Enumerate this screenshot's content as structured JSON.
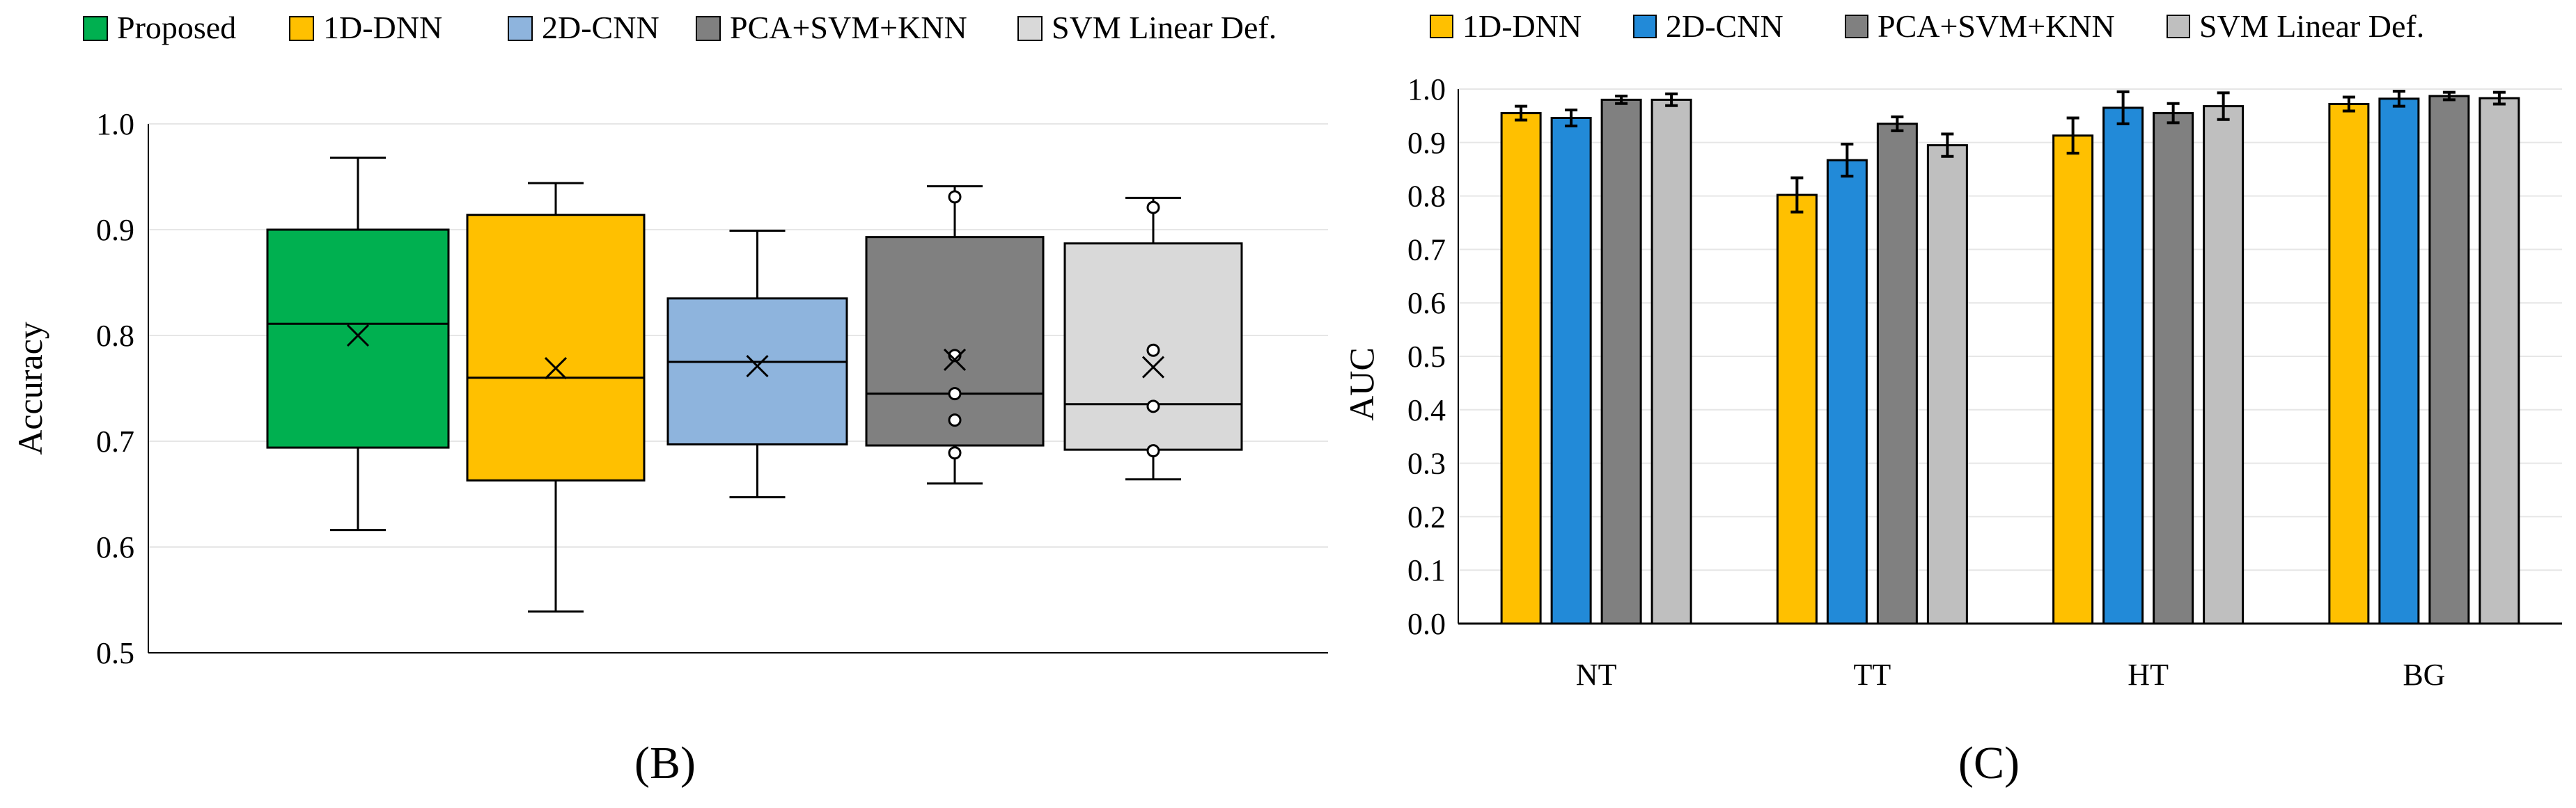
{
  "chart_data": [
    {
      "type": "box",
      "panel_label": "(B)",
      "ylabel": "Accuracy",
      "ylim": [
        0.5,
        1.0
      ],
      "yticks": [
        "0.5",
        "0.6",
        "0.7",
        "0.8",
        "0.9",
        "1.0"
      ],
      "legend_position": "top",
      "series": [
        {
          "name": "Proposed",
          "color": "#00b050",
          "min": 0.616,
          "q1": 0.694,
          "median": 0.811,
          "q3": 0.9,
          "max": 0.968,
          "mean": 0.8,
          "outliers": []
        },
        {
          "name": "1D-DNN",
          "color": "#ffc000",
          "min": 0.539,
          "q1": 0.663,
          "median": 0.76,
          "q3": 0.914,
          "max": 0.944,
          "mean": 0.769,
          "outliers": []
        },
        {
          "name": "2D-CNN",
          "color": "#8eb4dd",
          "min": 0.647,
          "q1": 0.697,
          "median": 0.775,
          "q3": 0.835,
          "max": 0.899,
          "mean": 0.771,
          "outliers": []
        },
        {
          "name": "PCA+SVM+KNN",
          "color": "#808080",
          "min": 0.66,
          "q1": 0.696,
          "median": 0.745,
          "q3": 0.893,
          "max": 0.941,
          "mean": 0.777,
          "outliers": [
            0.931,
            0.781,
            0.745,
            0.72,
            0.689
          ]
        },
        {
          "name": "SVM Linear Def.",
          "color": "#d9d9d9",
          "min": 0.664,
          "q1": 0.692,
          "median": 0.735,
          "q3": 0.887,
          "max": 0.93,
          "mean": 0.77,
          "outliers": [
            0.921,
            0.786,
            0.733,
            0.691
          ]
        }
      ]
    },
    {
      "type": "bar",
      "panel_label": "(C)",
      "ylabel": "AUC",
      "ylim": [
        0.0,
        1.0
      ],
      "yticks": [
        "0.0",
        "0.1",
        "0.2",
        "0.3",
        "0.4",
        "0.5",
        "0.6",
        "0.7",
        "0.8",
        "0.9",
        "1.0"
      ],
      "legend_position": "top",
      "categories": [
        "NT",
        "TT",
        "HT",
        "BG"
      ],
      "series": [
        {
          "name": "1D-DNN",
          "color": "#ffc000",
          "values": [
            0.955,
            0.802,
            0.913,
            0.972
          ],
          "errors": [
            0.013,
            0.032,
            0.033,
            0.013
          ]
        },
        {
          "name": "2D-CNN",
          "color": "#228ad8",
          "values": [
            0.946,
            0.867,
            0.965,
            0.982
          ],
          "errors": [
            0.015,
            0.03,
            0.03,
            0.014
          ]
        },
        {
          "name": "PCA+SVM+KNN",
          "color": "#808080",
          "values": [
            0.98,
            0.935,
            0.955,
            0.987
          ],
          "errors": [
            0.007,
            0.013,
            0.018,
            0.007
          ]
        },
        {
          "name": "SVM Linear Def.",
          "color": "#bfbfbf",
          "values": [
            0.98,
            0.895,
            0.968,
            0.983
          ],
          "errors": [
            0.011,
            0.021,
            0.025,
            0.011
          ]
        }
      ]
    }
  ]
}
